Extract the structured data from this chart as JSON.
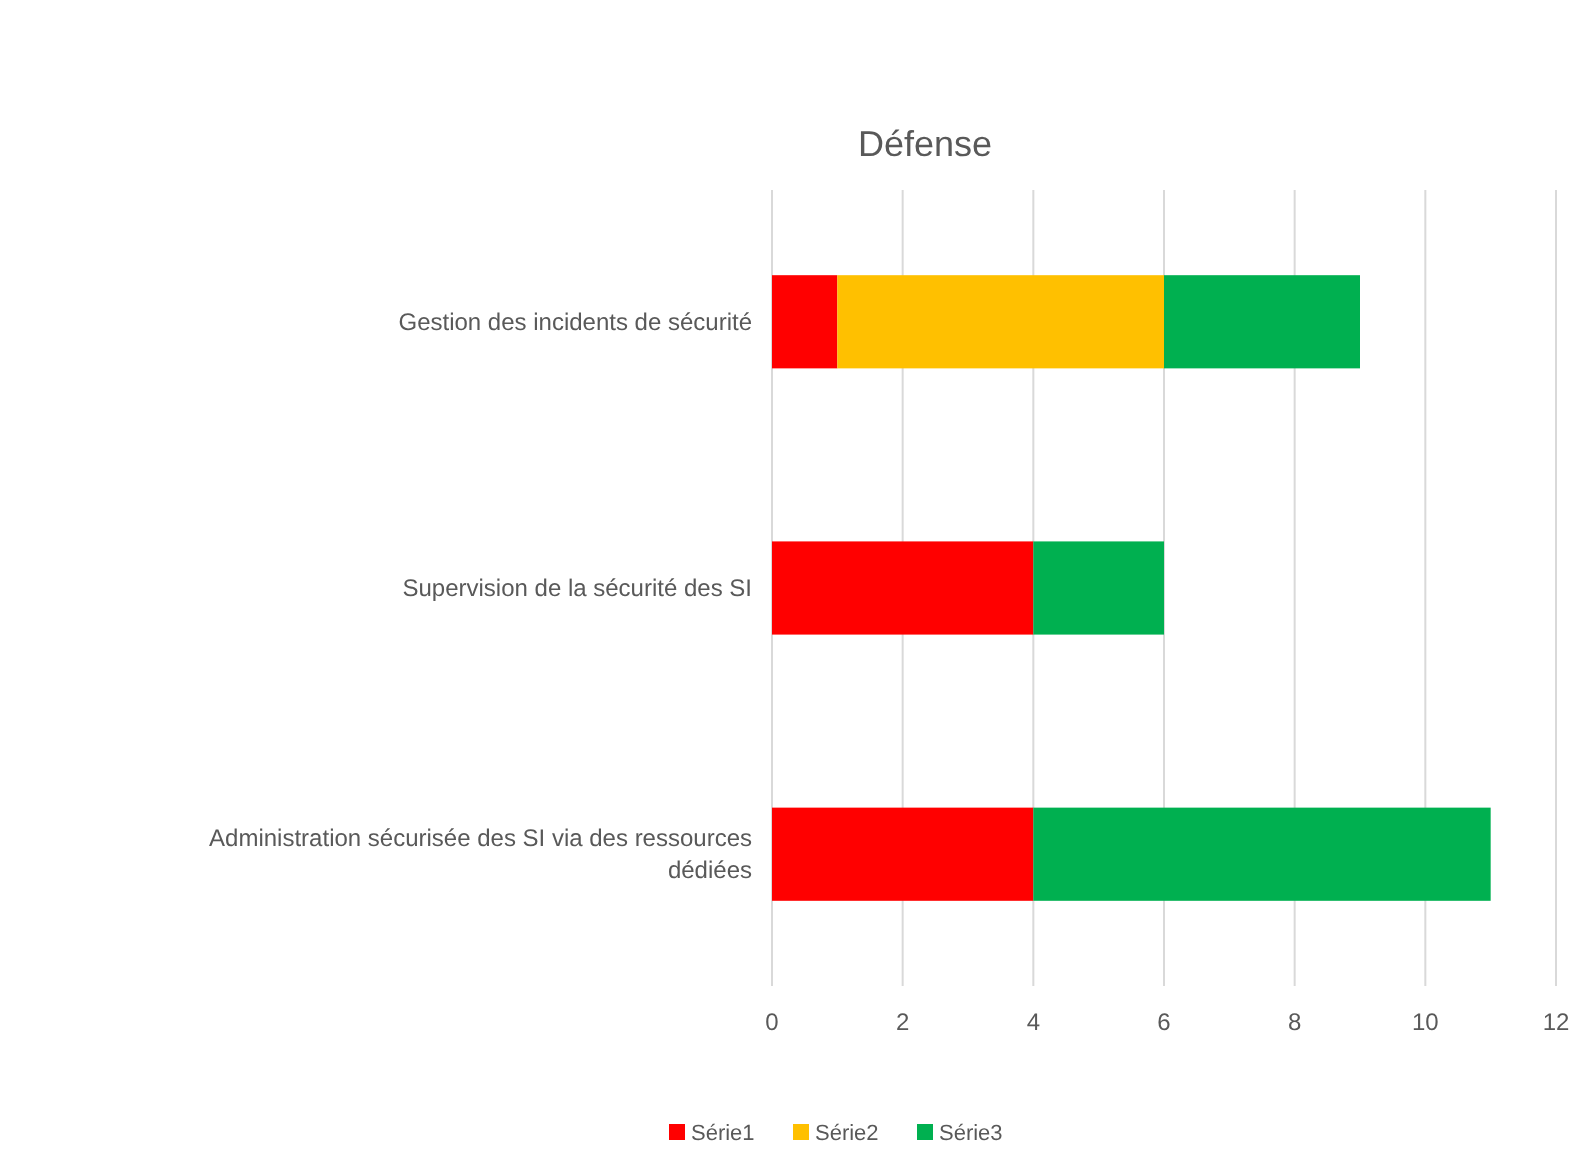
{
  "chart_data": {
    "type": "bar",
    "title": "Défense",
    "orientation": "horizontal",
    "stacked": true,
    "categories": [
      "Gestion des incidents de sécurité",
      "Supervision de la sécurité des SI",
      "Administration sécurisée des SI via des ressources dédiées"
    ],
    "series": [
      {
        "name": "Série1",
        "color": "#ff0000",
        "values": [
          1,
          4,
          4
        ]
      },
      {
        "name": "Série2",
        "color": "#ffc000",
        "values": [
          5,
          0,
          0
        ]
      },
      {
        "name": "Série3",
        "color": "#00b050",
        "values": [
          3,
          2,
          7
        ]
      }
    ],
    "xlim": [
      0,
      12
    ],
    "xticks": [
      0,
      2,
      4,
      6,
      8,
      10,
      12
    ],
    "grid": "x",
    "legend": "bottom"
  }
}
